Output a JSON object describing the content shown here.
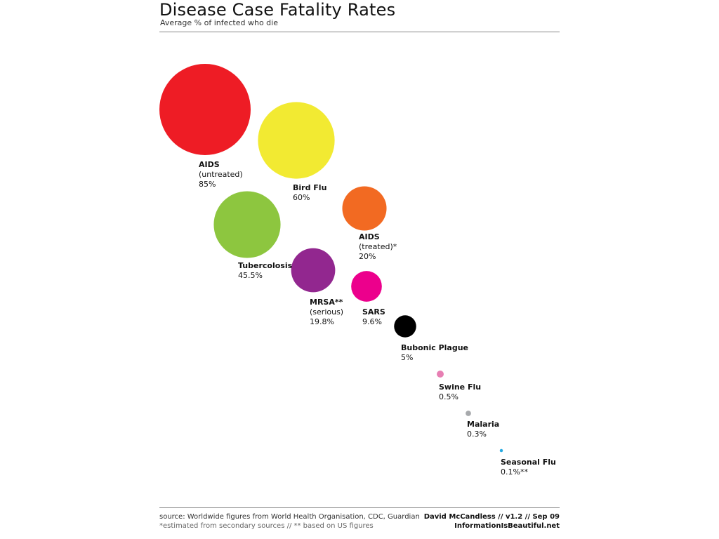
{
  "header": {
    "title": "Disease Case Fatality Rates",
    "subtitle": "Average % of infected who die"
  },
  "footer": {
    "source": "source: Worldwide figures from World Health Organisation, CDC, Guardian",
    "note": "*estimated from secondary sources // ** based on US figures",
    "credit": "David McCandless // v1.2 // Sep 09",
    "site": "InformationIsBeautiful.net"
  },
  "chart_data": {
    "type": "bubble",
    "title": "Disease Case Fatality Rates",
    "subtitle": "Average % of infected who die",
    "unit": "%",
    "series": [
      {
        "name": "AIDS",
        "note": "(untreated)",
        "value": 85,
        "value_label": "85%",
        "color": "#ee1c25"
      },
      {
        "name": "Bird Flu",
        "note": "",
        "value": 60,
        "value_label": "60%",
        "color": "#f2ea32"
      },
      {
        "name": "AIDS",
        "note": "(treated)*",
        "value": 20,
        "value_label": "20%",
        "color": "#f26a22"
      },
      {
        "name": "Tubercolosis",
        "note": "",
        "value": 45.5,
        "value_label": "45.5%",
        "color": "#8dc63f"
      },
      {
        "name": "MRSA**",
        "note": "(serious)",
        "value": 19.8,
        "value_label": "19.8%",
        "color": "#92278f"
      },
      {
        "name": "SARS",
        "note": "",
        "value": 9.6,
        "value_label": "9.6%",
        "color": "#ec008c"
      },
      {
        "name": "Bubonic Plague",
        "note": "",
        "value": 5,
        "value_label": "5%",
        "color": "#000000"
      },
      {
        "name": "Swine Flu",
        "note": "",
        "value": 0.5,
        "value_label": "0.5%",
        "color": "#e77fb3"
      },
      {
        "name": "Malaria",
        "note": "",
        "value": 0.3,
        "value_label": "0.3%",
        "color": "#a7a9ac"
      },
      {
        "name": "Seasonal Flu",
        "note": "",
        "value": 0.1,
        "value_label": "0.1%**",
        "color": "#27aae1"
      }
    ]
  }
}
